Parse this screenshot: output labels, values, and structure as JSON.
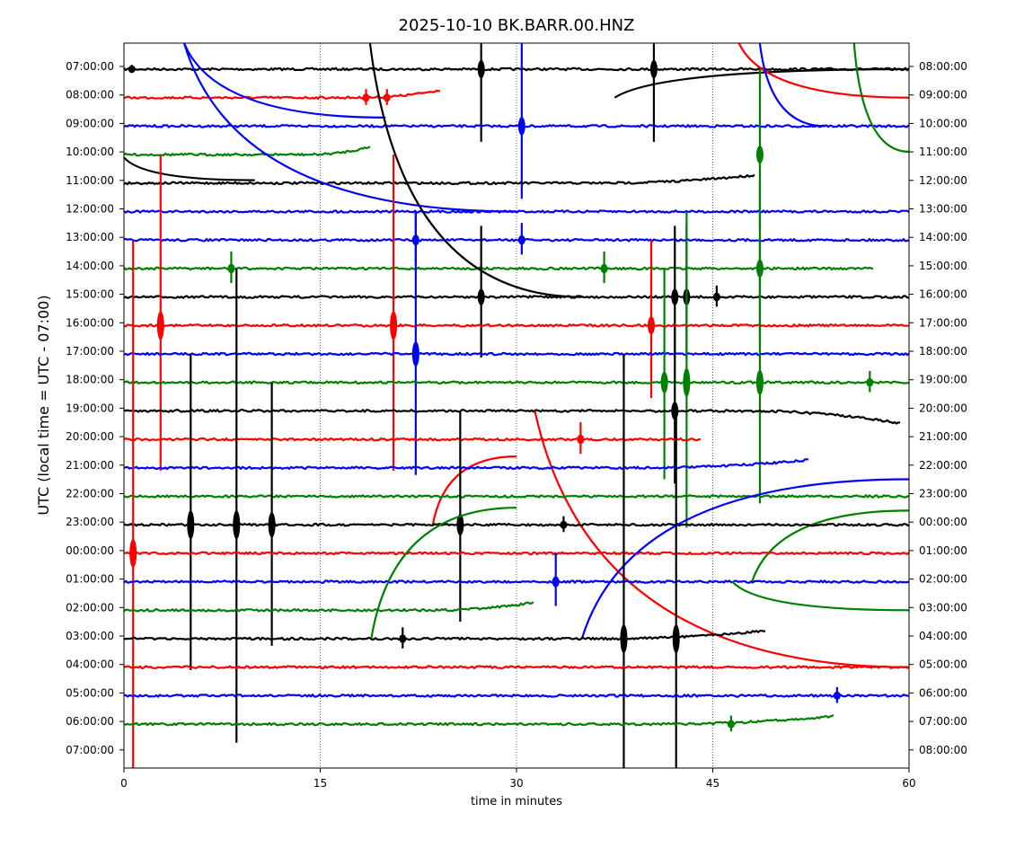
{
  "chart_data": {
    "type": "line",
    "title": "2025-10-10 BK.BARR.00.HNZ",
    "xlabel": "time in minutes",
    "ylabel": "UTC (local time = UTC - 07:00)",
    "xlim": [
      0,
      60
    ],
    "x_ticks": [
      0,
      15,
      30,
      45,
      60
    ],
    "vertical_gridlines": [
      15,
      30,
      45
    ],
    "grid": "dotted vertical lines at 15, 30, 45",
    "line_colors": [
      "#000000",
      "#ff0000",
      "#0000ff",
      "#008000"
    ],
    "left_tick_labels": [
      "07:00:00",
      "08:00:00",
      "09:00:00",
      "10:00:00",
      "11:00:00",
      "12:00:00",
      "13:00:00",
      "14:00:00",
      "15:00:00",
      "16:00:00",
      "17:00:00",
      "18:00:00",
      "19:00:00",
      "20:00:00",
      "21:00:00",
      "22:00:00",
      "23:00:00",
      "00:00:00",
      "01:00:00",
      "02:00:00",
      "03:00:00",
      "04:00:00",
      "05:00:00",
      "06:00:00",
      "07:00:00"
    ],
    "right_tick_labels": [
      "08:00:00",
      "09:00:00",
      "10:00:00",
      "11:00:00",
      "12:00:00",
      "13:00:00",
      "14:00:00",
      "15:00:00",
      "16:00:00",
      "17:00:00",
      "18:00:00",
      "19:00:00",
      "20:00:00",
      "21:00:00",
      "22:00:00",
      "23:00:00",
      "00:00:00",
      "01:00:00",
      "02:00:00",
      "03:00:00",
      "04:00:00",
      "05:00:00",
      "06:00:00",
      "07:00:00",
      "08:00:00"
    ],
    "traces": [
      {
        "row": 0,
        "color": "#000000",
        "x_end": 60,
        "tail": "flat",
        "spikes": [
          {
            "x": 0.6,
            "amp": 0.15
          },
          {
            "x": 27.3,
            "amp": 3
          },
          {
            "x": 40.5,
            "amp": 3
          }
        ],
        "segments": [
          {
            "x": [
              37.5,
              60
            ],
            "offset": [
              1,
              0
            ]
          }
        ]
      },
      {
        "row": 1,
        "color": "#ff0000",
        "x_end": 24.3,
        "tail": "up",
        "spikes": [
          {
            "x": 18.5,
            "amp": 0.3
          },
          {
            "x": 20.1,
            "amp": 0.3
          }
        ],
        "segments": [
          {
            "x": [
              47,
              60
            ],
            "offset": [
              -2,
              0
            ]
          }
        ]
      },
      {
        "row": 2,
        "color": "#0000ff",
        "x_end": 60,
        "tail": "flat",
        "spikes": [
          {
            "x": 30.4,
            "amp": 3
          }
        ],
        "segments": [
          {
            "x": [
              4.6,
              20
            ],
            "offset": [
              -3,
              -0.3
            ]
          },
          {
            "x": [
              48.6,
              53.6
            ],
            "offset": [
              -3,
              0
            ]
          }
        ]
      },
      {
        "row": 3,
        "color": "#008000",
        "x_end": 18.9,
        "tail": "up",
        "spikes": [
          {
            "x": 48.6,
            "amp": 3
          }
        ],
        "segments": [
          {
            "x": [
              55.8,
              60
            ],
            "offset": [
              -4,
              -0.1
            ]
          }
        ]
      },
      {
        "row": 4,
        "color": "#000000",
        "x_end": 48.3,
        "tail": "up",
        "spikes": [],
        "segments": [
          {
            "x": [
              0,
              10
            ],
            "offset": [
              -0.9,
              -0.1
            ]
          }
        ]
      },
      {
        "row": 5,
        "color": "#0000ff",
        "x_end": 60,
        "tail": "flat",
        "spikes": [],
        "segments": [
          {
            "x": [
              4.6,
              30
            ],
            "offset": [
              -7,
              0
            ]
          }
        ]
      },
      {
        "row": 6,
        "color": "#0000ff",
        "x_end": 60,
        "tail": "flat",
        "spikes": [
          {
            "x": 30.4,
            "amp": 0.6
          },
          {
            "x": 22.3,
            "amp": 1
          }
        ],
        "segments": []
      },
      {
        "row": 7,
        "color": "#008000",
        "x_end": 57.3,
        "tail": "flat",
        "spikes": [
          {
            "x": 8.2,
            "amp": 0.6
          },
          {
            "x": 36.7,
            "amp": 0.6
          },
          {
            "x": 48.6,
            "amp": 3
          }
        ],
        "segments": []
      },
      {
        "row": 8,
        "color": "#000000",
        "x_end": 60,
        "tail": "flat",
        "spikes": [
          {
            "x": 27.3,
            "amp": 2.5
          },
          {
            "x": 42.1,
            "amp": 2.5
          },
          {
            "x": 43.0,
            "amp": 2.5
          },
          {
            "x": 45.3,
            "amp": 0.4
          }
        ],
        "segments": [
          {
            "x": [
              18.8,
              35
            ],
            "offset": [
              -10,
              0
            ]
          }
        ]
      },
      {
        "row": 9,
        "color": "#ff0000",
        "x_end": 60,
        "tail": "flat",
        "spikes": [
          {
            "x": 2.8,
            "amp": 6
          },
          {
            "x": 20.6,
            "amp": 6
          },
          {
            "x": 40.3,
            "amp": 3
          }
        ],
        "segments": []
      },
      {
        "row": 10,
        "color": "#0000ff",
        "x_end": 60,
        "tail": "flat",
        "spikes": [
          {
            "x": 22.3,
            "amp": 5
          }
        ],
        "segments": []
      },
      {
        "row": 11,
        "color": "#008000",
        "x_end": 60,
        "tail": "flat",
        "spikes": [
          {
            "x": 57.0,
            "amp": 0.4
          },
          {
            "x": 41.3,
            "amp": 4
          },
          {
            "x": 43.0,
            "amp": 6
          },
          {
            "x": 48.6,
            "amp": 5
          }
        ],
        "segments": []
      },
      {
        "row": 12,
        "color": "#000000",
        "x_end": 59.4,
        "tail": "down",
        "spikes": [
          {
            "x": 42.1,
            "amp": 3
          }
        ],
        "segments": []
      },
      {
        "row": 13,
        "color": "#ff0000",
        "x_end": 44.2,
        "tail": "flat",
        "spikes": [
          {
            "x": 34.9,
            "amp": 0.6
          }
        ],
        "segments": [
          {
            "x": [
              23.6,
              30
            ],
            "offset": [
              3,
              0.6
            ]
          },
          {
            "x": [
              31.4,
              60
            ],
            "offset": [
              -1,
              8
            ]
          }
        ]
      },
      {
        "row": 14,
        "color": "#0000ff",
        "x_end": 52.4,
        "tail": "up",
        "spikes": [],
        "segments": []
      },
      {
        "row": 15,
        "color": "#008000",
        "x_end": 60,
        "tail": "flat",
        "spikes": [],
        "segments": [
          {
            "x": [
              48,
              60
            ],
            "offset": [
              3,
              0.5
            ]
          }
        ]
      },
      {
        "row": 16,
        "color": "#000000",
        "x_end": 60,
        "tail": "flat",
        "spikes": [
          {
            "x": 5.1,
            "amp": 6
          },
          {
            "x": 8.6,
            "amp": 9
          },
          {
            "x": 11.3,
            "amp": 5
          },
          {
            "x": 25.7,
            "amp": 4
          },
          {
            "x": 33.6,
            "amp": 0.3
          }
        ],
        "segments": []
      },
      {
        "row": 17,
        "color": "#ff0000",
        "x_end": 60,
        "tail": "flat",
        "spikes": [
          {
            "x": 0.7,
            "amp": 11
          }
        ],
        "segments": []
      },
      {
        "row": 18,
        "color": "#0000ff",
        "x_end": 60,
        "tail": "flat",
        "spikes": [
          {
            "x": 33.0,
            "amp": 1
          }
        ],
        "segments": [
          {
            "x": [
              35.0,
              60
            ],
            "offset": [
              2,
              -3.6
            ]
          }
        ]
      },
      {
        "row": 19,
        "color": "#008000",
        "x_end": 31.4,
        "tail": "up",
        "spikes": [],
        "segments": [
          {
            "x": [
              18.9,
              30
            ],
            "offset": [
              1,
              -3.6
            ]
          },
          {
            "x": [
              46.5,
              60
            ],
            "offset": [
              -1,
              0
            ]
          }
        ]
      },
      {
        "row": 20,
        "color": "#000000",
        "x_end": 49.1,
        "tail": "up",
        "spikes": [
          {
            "x": 21.3,
            "amp": 0.4
          },
          {
            "x": 38.2,
            "amp": 10
          },
          {
            "x": 42.2,
            "amp": 8
          }
        ],
        "segments": []
      },
      {
        "row": 21,
        "color": "#ff0000",
        "x_end": 60,
        "tail": "flat",
        "spikes": [],
        "segments": []
      },
      {
        "row": 22,
        "color": "#0000ff",
        "x_end": 60,
        "tail": "flat",
        "spikes": [
          {
            "x": 54.5,
            "amp": 0.3
          }
        ],
        "segments": []
      },
      {
        "row": 23,
        "color": "#008000",
        "x_end": 54.3,
        "tail": "up",
        "spikes": [
          {
            "x": 46.4,
            "amp": 0.3
          }
        ],
        "segments": []
      }
    ]
  }
}
